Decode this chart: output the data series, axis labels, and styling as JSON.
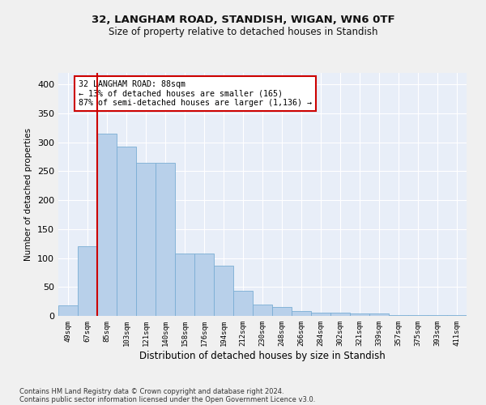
{
  "title1": "32, LANGHAM ROAD, STANDISH, WIGAN, WN6 0TF",
  "title2": "Size of property relative to detached houses in Standish",
  "xlabel": "Distribution of detached houses by size in Standish",
  "ylabel": "Number of detached properties",
  "footnote1": "Contains HM Land Registry data © Crown copyright and database right 2024.",
  "footnote2": "Contains public sector information licensed under the Open Government Licence v3.0.",
  "annotation_line1": "32 LANGHAM ROAD: 88sqm",
  "annotation_line2": "← 13% of detached houses are smaller (165)",
  "annotation_line3": "87% of semi-detached houses are larger (1,136) →",
  "bar_color": "#b8d0ea",
  "bar_edge_color": "#7aadd4",
  "bg_color": "#e8eef8",
  "grid_color": "#ffffff",
  "fig_bg_color": "#f0f0f0",
  "vline_color": "#cc0000",
  "bins": [
    "49sqm",
    "67sqm",
    "85sqm",
    "103sqm",
    "121sqm",
    "140sqm",
    "158sqm",
    "176sqm",
    "194sqm",
    "212sqm",
    "230sqm",
    "248sqm",
    "266sqm",
    "284sqm",
    "302sqm",
    "321sqm",
    "339sqm",
    "357sqm",
    "375sqm",
    "393sqm",
    "411sqm"
  ],
  "values": [
    18,
    120,
    315,
    292,
    265,
    265,
    108,
    108,
    87,
    44,
    20,
    15,
    8,
    5,
    5,
    4,
    4,
    2,
    2,
    1,
    2
  ],
  "ylim": [
    0,
    420
  ],
  "yticks": [
    0,
    50,
    100,
    150,
    200,
    250,
    300,
    350,
    400
  ]
}
